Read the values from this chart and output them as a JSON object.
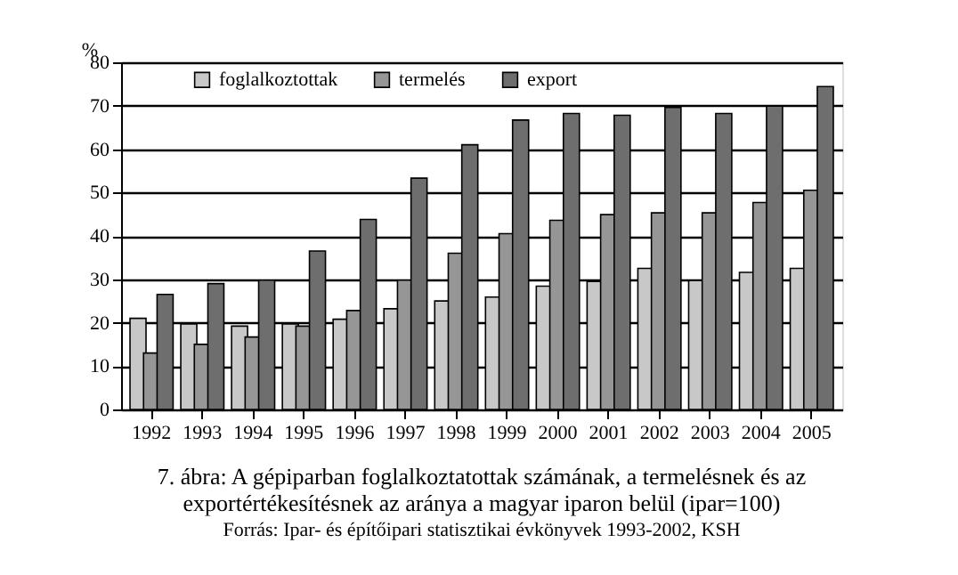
{
  "chart_data": {
    "type": "bar",
    "title": "7. ábra: A gépiparban foglalkoztatottak számának, a termelésnek és az exportértékesítésnek az aránya a magyar iparon belül (ipar=100)",
    "ylabel": "%",
    "annotations": [
      "Forrás: Ipar- és építőipari statisztikai évkönyvek 1993-2002, KSH"
    ],
    "categories": [
      "1992",
      "1993",
      "1994",
      "1995",
      "1996",
      "1997",
      "1998",
      "1999",
      "2000",
      "2001",
      "2002",
      "2003",
      "2004",
      "2005"
    ],
    "series": [
      {
        "name": "foglalkoztottak",
        "color": "#c8c8c8",
        "values": [
          21,
          19.7,
          19.2,
          19.7,
          20.8,
          23.2,
          25,
          25.9,
          28.4,
          29.5,
          32.5,
          29.7,
          31.6,
          32.5
        ]
      },
      {
        "name": "termelés",
        "color": "#969696",
        "values": [
          13,
          15,
          16.7,
          19.2,
          22.8,
          29.8,
          36,
          40.5,
          43.6,
          44.9,
          45.3,
          45.3,
          47.7,
          50.5
        ]
      },
      {
        "name": "export",
        "color": "#6e6e6e",
        "values": [
          26.5,
          29,
          29.8,
          36.5,
          43.8,
          53.3,
          61,
          66.7,
          68.2,
          67.8,
          69.6,
          68.2,
          69.9,
          74.4
        ]
      }
    ],
    "ylim": [
      0,
      80
    ],
    "yticks": [
      0,
      10,
      20,
      30,
      40,
      50,
      60,
      70,
      80
    ],
    "grid": "y",
    "legend": "top"
  }
}
